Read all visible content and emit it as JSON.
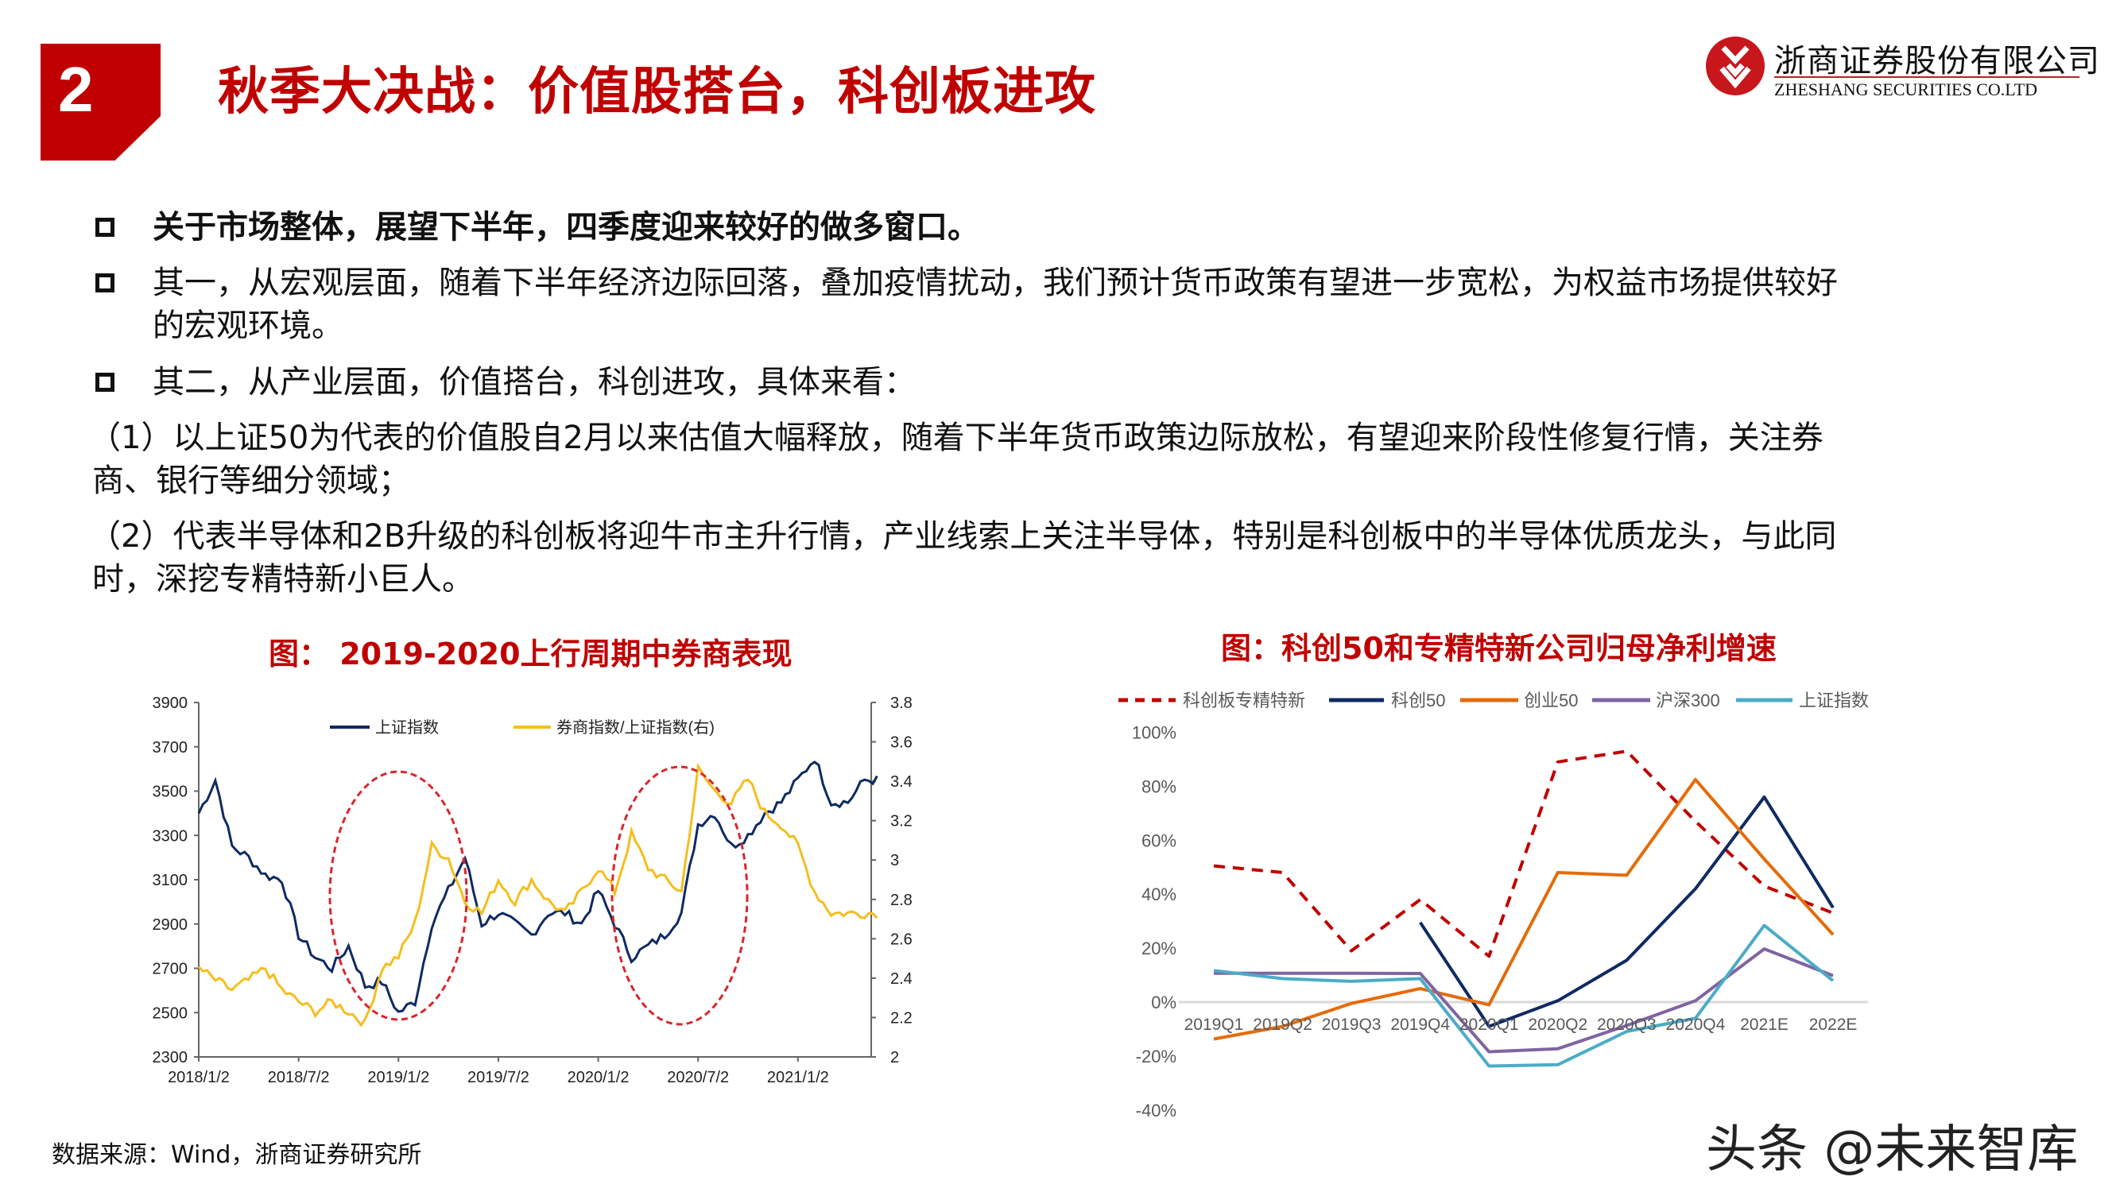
{
  "header": {
    "section_number": "2",
    "title": "秋季大决战：价值股搭台，科创板进攻",
    "logo_cn": "浙商证券股份有限公司",
    "logo_en": "ZHESHANG SECURITIES CO.LTD"
  },
  "body": {
    "bullets": [
      {
        "lines": [
          "关于市场整体，展望下半年，四季度迎来较好的做多窗口。"
        ],
        "bold": true
      },
      {
        "lines": [
          "其一，从宏观层面，随着下半年经济边际回落，叠加疫情扰动，我们预计货币政策有望进一步宽松，为权益市场提供较好",
          "的宏观环境。"
        ]
      },
      {
        "lines": [
          "其二，从产业层面，价值搭台，科创进攻，具体来看："
        ]
      }
    ],
    "paragraphs": [
      {
        "lines": [
          "（1）以上证50为代表的价值股自2月以来估值大幅释放，随着下半年货币政策边际放松，有望迎来阶段性修复行情，关注券",
          "商、银行等细分领域；"
        ]
      },
      {
        "lines": [
          "（2）代表半导体和2B升级的科创板将迎牛市主升行情，产业线索上关注半导体，特别是科创板中的半导体优质龙头，与此同",
          "时，深挖专精特新小巨人。"
        ]
      }
    ]
  },
  "source": "数据来源：Wind，浙商证券研究所",
  "watermark": "头条 @未来智库",
  "colors": {
    "brand_red": "#c00000",
    "navy": "#0f2a63",
    "gold": "#f5be1e",
    "orange": "#e46c0a",
    "purple": "#8064a2",
    "teal": "#4bacc6"
  },
  "chart_data": [
    {
      "type": "line",
      "title": "图：   2019-2020上行周期中券商表现",
      "x_tick_labels": [
        "2018/1/2",
        "2018/7/2",
        "2019/1/2",
        "2019/7/2",
        "2020/1/2",
        "2020/7/2",
        "2021/1/2"
      ],
      "y_left": {
        "ticks": [
          "2300",
          "2500",
          "2700",
          "2900",
          "3100",
          "3300",
          "3500",
          "3700",
          "3900"
        ],
        "range": [
          2300,
          3900
        ]
      },
      "y_right": {
        "ticks": [
          "2",
          "2.2",
          "2.4",
          "2.6",
          "2.8",
          "3",
          "3.2",
          "3.4",
          "3.6",
          "3.8"
        ],
        "range": [
          2,
          3.8
        ]
      },
      "legend_position": "top",
      "x": [
        "2018-01",
        "2018-02",
        "2018-03",
        "2018-04",
        "2018-05",
        "2018-06",
        "2018-07",
        "2018-08",
        "2018-09",
        "2018-10",
        "2018-11",
        "2018-12",
        "2019-01",
        "2019-02",
        "2019-03",
        "2019-04",
        "2019-05",
        "2019-06",
        "2019-07",
        "2019-08",
        "2019-09",
        "2019-10",
        "2019-11",
        "2019-12",
        "2020-01",
        "2020-02",
        "2020-03",
        "2020-04",
        "2020-05",
        "2020-06",
        "2020-07",
        "2020-08",
        "2020-09",
        "2020-10",
        "2020-11",
        "2020-12",
        "2021-01",
        "2021-02",
        "2021-03",
        "2021-04",
        "2021-05"
      ],
      "series": [
        {
          "name": "上证指数",
          "axis": "left",
          "color": "#0f2a63",
          "values": [
            3400,
            3550,
            3250,
            3200,
            3120,
            3100,
            2850,
            2750,
            2700,
            2800,
            2620,
            2640,
            2500,
            2550,
            2900,
            3050,
            3200,
            2900,
            2950,
            2900,
            2850,
            2950,
            2950,
            2900,
            3050,
            2900,
            2750,
            2800,
            2850,
            2950,
            3350,
            3400,
            3250,
            3300,
            3400,
            3450,
            3550,
            3650,
            3450,
            3450,
            3550
          ]
        },
        {
          "name": "券商指数/上证指数(右)",
          "axis": "right",
          "color": "#f5be1e",
          "values": [
            2.45,
            2.39,
            2.34,
            2.39,
            2.45,
            2.34,
            2.28,
            2.23,
            2.28,
            2.23,
            2.17,
            2.45,
            2.51,
            2.68,
            3.07,
            3.01,
            2.79,
            2.73,
            2.9,
            2.79,
            2.9,
            2.79,
            2.73,
            2.84,
            2.96,
            2.84,
            3.13,
            2.96,
            2.9,
            2.84,
            3.46,
            3.35,
            3.29,
            3.41,
            3.24,
            3.18,
            3.07,
            2.84,
            2.73,
            2.73,
            2.73
          ]
        }
      ],
      "annotations": [
        "dashed red ellipse around 2018Q4-2019Q1",
        "dashed red ellipse around 2020Q2"
      ]
    },
    {
      "type": "line",
      "title": "图：科创50和专精特新公司归母净利增速",
      "categories": [
        "2019Q1",
        "2019Q2",
        "2019Q3",
        "2019Q4",
        "2020Q1",
        "2020Q2",
        "2020Q3",
        "2020Q4",
        "2021E",
        "2022E"
      ],
      "y_ticks": [
        "100%",
        "80%",
        "60%",
        "40%",
        "20%",
        "0%",
        "-20%",
        "-40%"
      ],
      "ylim": [
        -40,
        100
      ],
      "legend_position": "top",
      "series": [
        {
          "name": "科创板专精特新",
          "color": "#c00000",
          "dashed": true,
          "values": [
            50.5,
            48,
            19,
            38,
            17,
            89,
            93,
            67,
            43,
            33
          ]
        },
        {
          "name": "科创50",
          "color": "#0f2a63",
          "values": [
            null,
            null,
            null,
            29.5,
            -9,
            0.5,
            15.5,
            42,
            76,
            35
          ]
        },
        {
          "name": "创业50",
          "color": "#e46c0a",
          "values": [
            -13.7,
            -9,
            -0.5,
            5,
            -1,
            48,
            47,
            82.5,
            53,
            25
          ]
        },
        {
          "name": "沪深300",
          "color": "#8064a2",
          "values": [
            10.7,
            10.7,
            10.7,
            10.6,
            -18.4,
            -17.3,
            -8.7,
            0.5,
            19.7,
            9.8
          ]
        },
        {
          "name": "上证指数",
          "color": "#4bacc6",
          "values": [
            11.7,
            8.7,
            7.7,
            8.7,
            -23.7,
            -23.2,
            -10.9,
            -6,
            28.4,
            7.9
          ]
        }
      ]
    }
  ]
}
